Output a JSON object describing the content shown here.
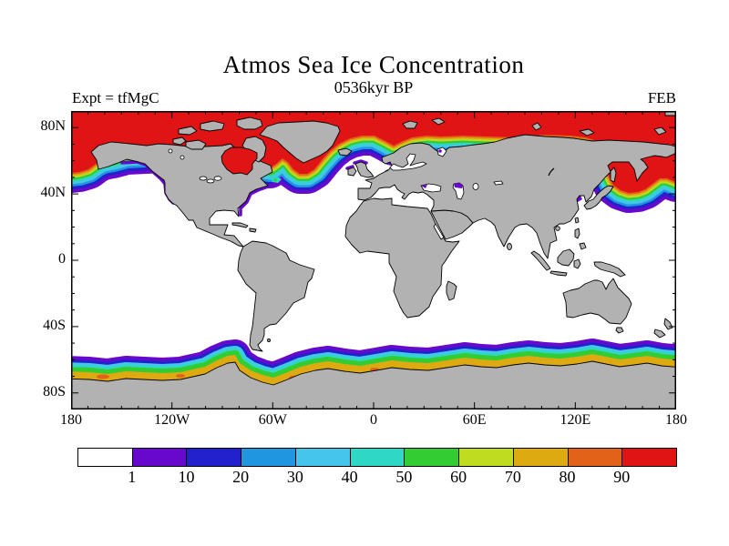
{
  "header": {
    "title": "Atmos Sea Ice Concentration",
    "subtitle": "0536kyr BP",
    "experiment": "Expt = tfMgC",
    "month": "FEB"
  },
  "palette": {
    "ocean": "#ffffff",
    "land": "#b2b2b2",
    "coastline": "#000000",
    "frame": "#000000",
    "ice": {
      "p1": "#6609cc",
      "p10": "#2222cc",
      "p20": "#2095e0",
      "p30": "#45c5ea",
      "p40": "#2fd8c4",
      "p50": "#33cc33",
      "p60": "#c0dc20",
      "p70": "#ddaa11",
      "p80": "#e2621a",
      "p90": "#e01414"
    }
  },
  "x_axis": {
    "ticks": [
      {
        "label": "180",
        "deg": -180
      },
      {
        "label": "120W",
        "deg": -120
      },
      {
        "label": "60W",
        "deg": -60
      },
      {
        "label": "0",
        "deg": 0
      },
      {
        "label": "60E",
        "deg": 60
      },
      {
        "label": "120E",
        "deg": 120
      },
      {
        "label": "180",
        "deg": 180
      }
    ],
    "minor_step_deg": 10,
    "major_step_deg": 60
  },
  "y_axis": {
    "ticks": [
      {
        "label": "80N",
        "deg": 80
      },
      {
        "label": "40N",
        "deg": 40
      },
      {
        "label": "0",
        "deg": 0
      },
      {
        "label": "40S",
        "deg": -40
      },
      {
        "label": "80S",
        "deg": -80
      }
    ],
    "minor_step_deg": 10,
    "major_step_deg": 40
  },
  "colorbar": {
    "labels": [
      "1",
      "10",
      "20",
      "30",
      "40",
      "50",
      "60",
      "70",
      "80",
      "90"
    ],
    "colors": [
      "#ffffff",
      "#6609cc",
      "#2222cc",
      "#2095e0",
      "#45c5ea",
      "#2fd8c4",
      "#33cc33",
      "#c0dc20",
      "#ddaa11",
      "#e2621a",
      "#e01414"
    ]
  },
  "chart_data": {
    "type": "heatmap",
    "title": "Atmos Sea Ice Concentration",
    "subtitle": "0536kyr BP",
    "experiment_label": "Expt = tfMgC",
    "month": "FEB",
    "projection": "equirectangular world map, lon -180..180, lat -90..90",
    "x_tick_labels": [
      "180",
      "120W",
      "60W",
      "0",
      "60E",
      "120E",
      "180"
    ],
    "y_tick_labels": [
      "80N",
      "40N",
      "0",
      "40S",
      "80S"
    ],
    "x_range_deg": [
      -180,
      180
    ],
    "y_range_deg": [
      -90,
      90
    ],
    "grid": false,
    "legend_position": "horizontal colorbar below map",
    "colorbar_levels_percent": [
      1,
      10,
      20,
      30,
      40,
      50,
      60,
      70,
      80,
      90
    ],
    "colorbar_colors": [
      "#ffffff",
      "#6609cc",
      "#2222cc",
      "#2095e0",
      "#45c5ea",
      "#2fd8c4",
      "#33cc33",
      "#c0dc20",
      "#ddaa11",
      "#e2621a",
      "#e01414"
    ],
    "features": [
      "Arctic ocean fully ice covered (>90%, red) north of ~70N including Hudson Bay and Baffin Bay/Davis Strait",
      "North Atlantic ice edge tongue dips to ~45N southeast of Newfoundland then rises northeast to northern Norway with rainbow concentration gradient",
      "North Pacific: Sea of Okhotsk ice covered, ice tongue east of Japan/Kuril Islands reaching ~35N at right map edge",
      "Thin low-concentration (purple ~1-10%) fringe along NE American seaboard, Gulf of Alaska coast, Sea of Japan coast, north Caspian and northwest Black Sea",
      "Antarctic: circumpolar sea-ice band along coast, purple offshore grading to green/yellow with scattered orange-red patches near the coastline",
      "Continents masked grey with black coastline contours; open ocean white (<1%)"
    ]
  }
}
